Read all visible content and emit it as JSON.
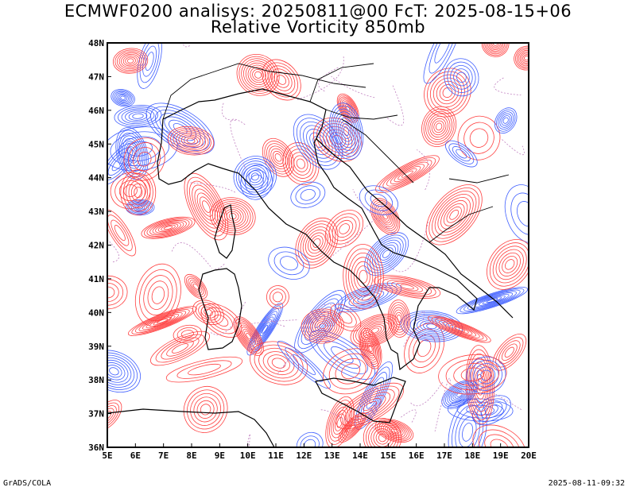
{
  "title": {
    "line1": "ECMWF0200 analisys: 20250811@00 FcT: 2025-08-15+06",
    "line2": "Relative Vorticity 850mb"
  },
  "map": {
    "field": "Relative Vorticity",
    "level": "850mb",
    "lon_range": [
      5,
      20
    ],
    "lat_range": [
      36,
      48
    ],
    "lon_ticks": [
      "5E",
      "6E",
      "7E",
      "8E",
      "9E",
      "10E",
      "11E",
      "12E",
      "13E",
      "14E",
      "15E",
      "16E",
      "17E",
      "18E",
      "19E",
      "20E"
    ],
    "lat_ticks": [
      "36N",
      "37N",
      "38N",
      "39N",
      "40N",
      "41N",
      "42N",
      "43N",
      "44N",
      "45N",
      "46N",
      "47N",
      "48N"
    ],
    "colors": {
      "positive": "#ff3f3f",
      "negative": "#3f5fff",
      "zero": "#c080c0",
      "coastline": "#000000",
      "frame": "#000000"
    }
  },
  "footer": {
    "left": "GrADS/COLA",
    "right": "2025-08-11-09:32"
  }
}
